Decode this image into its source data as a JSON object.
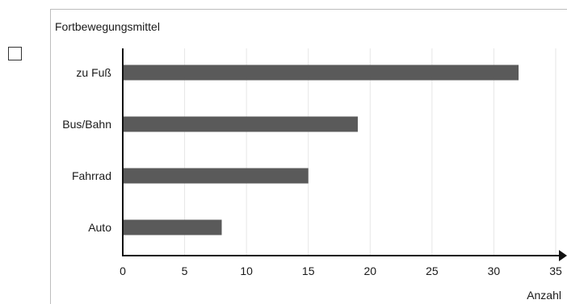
{
  "chart_data": {
    "type": "bar",
    "orientation": "horizontal",
    "title": "Fortbewegungsmittel",
    "xlabel": "Anzahl",
    "ylabel": "",
    "categories": [
      "zu Fuß",
      "Bus/Bahn",
      "Fahrrad",
      "Auto"
    ],
    "values": [
      32,
      19,
      15,
      8
    ],
    "xlim": [
      0,
      35
    ],
    "xticks": [
      0,
      5,
      10,
      15,
      20,
      25,
      30,
      35
    ],
    "grid": "vertical",
    "bar_color": "#5a5a5a",
    "grid_color": "#e6e6e6"
  }
}
